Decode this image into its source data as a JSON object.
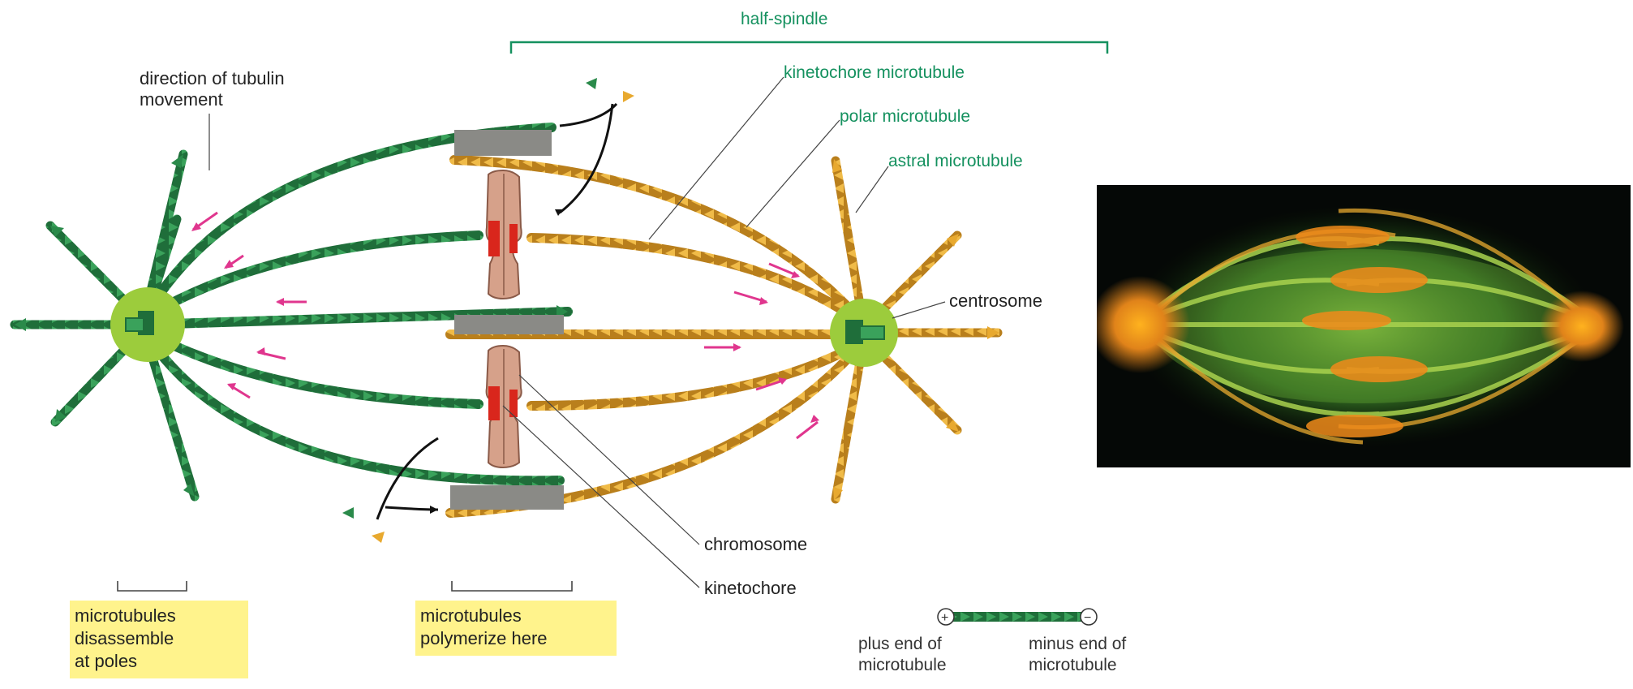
{
  "labels": {
    "half_spindle": "half-spindle",
    "direction_line1": "direction of tubulin",
    "direction_line2": "movement",
    "kinetochore_microtubule": "kinetochore microtubule",
    "polar_microtubule": "polar microtubule",
    "astral_microtubule": "astral microtubule",
    "centrosome": "centrosome",
    "chromosome": "chromosome",
    "kinetochore": "kinetochore"
  },
  "boxes": {
    "disassemble_line1": "microtubules",
    "disassemble_line2": "disassemble",
    "disassemble_line3": "at poles",
    "polymerize_line1": "microtubules",
    "polymerize_line2": "polymerize here"
  },
  "legend": {
    "plus_sign": "+",
    "minus_sign": "−",
    "plus_line1": "plus end of",
    "plus_line2": "microtubule",
    "minus_line1": "minus end of",
    "minus_line2": "microtubule"
  },
  "colors": {
    "green_tubule": "#2a8a4a",
    "orange_tubule": "#e8a92f",
    "centrosome_halo": "#9ccc3c",
    "chromosome": "#d6a18a",
    "kinetochore": "#d9261c",
    "label_green": "#15915f",
    "highlight_box": "#fff38c",
    "arrow_magenta": "#e0368e"
  }
}
